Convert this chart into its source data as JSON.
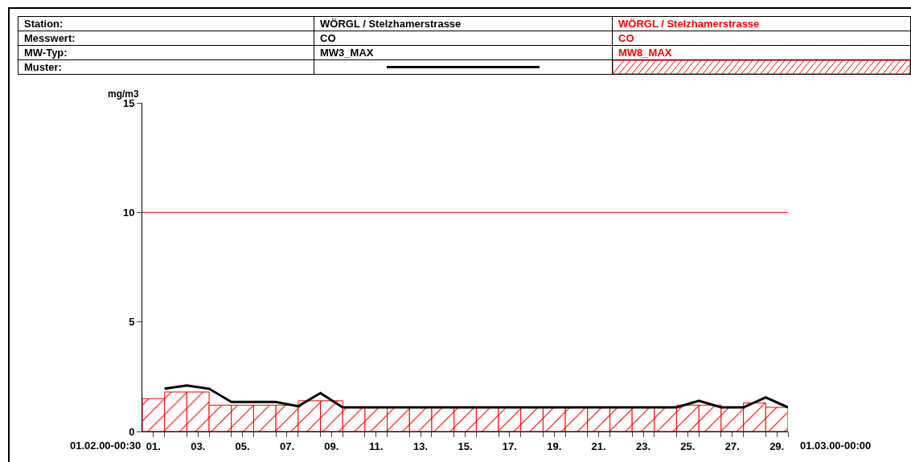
{
  "chart_data": {
    "type": "bar",
    "ylabel": "mg/m3",
    "annotations": [
      "Station:",
      "Messwert:",
      "MW-Typ:",
      "Muster:",
      "WÖRGL / Stelzhamerstrasse",
      "CO",
      "WÖRGL / Stelzhamerstrasse",
      "CO",
      "01.02.00-00:30",
      "01.03.00-00:00"
    ],
    "series": [
      {
        "name": "MW3_MAX",
        "type": "line",
        "color": "#000000",
        "x": [
          1,
          2,
          3,
          4,
          5,
          6,
          7,
          8,
          9,
          10,
          11,
          12,
          13,
          14,
          15,
          16,
          17,
          18,
          19,
          20,
          21,
          22,
          23,
          24,
          25,
          26,
          27,
          28,
          29
        ],
        "values": [
          1.95,
          2.1,
          1.95,
          1.35,
          1.35,
          1.35,
          1.15,
          1.75,
          1.1,
          1.1,
          1.1,
          1.1,
          1.1,
          1.1,
          1.1,
          1.1,
          1.1,
          1.1,
          1.1,
          1.1,
          1.1,
          1.1,
          1.1,
          1.1,
          1.4,
          1.1,
          1.1,
          1.55,
          1.1
        ]
      },
      {
        "name": "MW8_MAX",
        "color": "#ff0000",
        "x": [
          0.5,
          1.5,
          2.5,
          3.5,
          4.5,
          5.5,
          6.5,
          7.5,
          8.5,
          9.5,
          10.5,
          11.5,
          12.5,
          13.5,
          14.5,
          15.5,
          16.5,
          17.5,
          18.5,
          19.5,
          20.5,
          21.5,
          22.5,
          23.5,
          24.5,
          25.5,
          26.5,
          27.5,
          28.5
        ],
        "values": [
          1.5,
          1.8,
          1.8,
          1.2,
          1.2,
          1.2,
          1.2,
          1.4,
          1.4,
          1.1,
          1.1,
          1.1,
          1.1,
          1.1,
          1.1,
          1.1,
          1.1,
          1.1,
          1.1,
          1.1,
          1.1,
          1.1,
          1.1,
          1.1,
          1.2,
          1.2,
          1.1,
          1.3,
          1.1
        ]
      }
    ],
    "xlim": [
      0,
      29
    ],
    "xticks": [
      {
        "value": 0.5,
        "label": "01."
      },
      {
        "value": 1,
        "label": null
      },
      {
        "value": 2,
        "label": null
      },
      {
        "value": 2.5,
        "label": "03."
      },
      {
        "value": 3,
        "label": null
      },
      {
        "value": 4,
        "label": null
      },
      {
        "value": 4.5,
        "label": "05."
      },
      {
        "value": 5,
        "label": null
      },
      {
        "value": 6,
        "label": null
      },
      {
        "value": 6.5,
        "label": "07."
      },
      {
        "value": 7,
        "label": null
      },
      {
        "value": 8,
        "label": null
      },
      {
        "value": 8.5,
        "label": "09."
      },
      {
        "value": 9,
        "label": null
      },
      {
        "value": 10,
        "label": null
      },
      {
        "value": 10.5,
        "label": "11."
      },
      {
        "value": 11,
        "label": null
      },
      {
        "value": 12,
        "label": null
      },
      {
        "value": 12.5,
        "label": "13."
      },
      {
        "value": 13,
        "label": null
      },
      {
        "value": 14,
        "label": null
      },
      {
        "value": 14.5,
        "label": "15."
      },
      {
        "value": 15,
        "label": null
      },
      {
        "value": 16,
        "label": null
      },
      {
        "value": 16.5,
        "label": "17."
      },
      {
        "value": 17,
        "label": null
      },
      {
        "value": 18,
        "label": null
      },
      {
        "value": 18.5,
        "label": "19."
      },
      {
        "value": 19,
        "label": null
      },
      {
        "value": 20,
        "label": null
      },
      {
        "value": 20.5,
        "label": "21."
      },
      {
        "value": 21,
        "label": null
      },
      {
        "value": 22,
        "label": null
      },
      {
        "value": 22.5,
        "label": "23."
      },
      {
        "value": 23,
        "label": null
      },
      {
        "value": 24,
        "label": null
      },
      {
        "value": 24.5,
        "label": "25."
      },
      {
        "value": 25,
        "label": null
      },
      {
        "value": 26,
        "label": null
      },
      {
        "value": 26.5,
        "label": "27."
      },
      {
        "value": 27,
        "label": null
      },
      {
        "value": 28,
        "label": null
      },
      {
        "value": 28.5,
        "label": "29."
      },
      {
        "value": 29,
        "label": null
      }
    ],
    "ylim": [
      0,
      15
    ],
    "yticks": [
      0,
      5,
      10,
      15
    ],
    "ref_lines": [
      {
        "axis": "y",
        "value": 10,
        "color": "#ff0000"
      }
    ],
    "grid": false,
    "legend": "top"
  }
}
